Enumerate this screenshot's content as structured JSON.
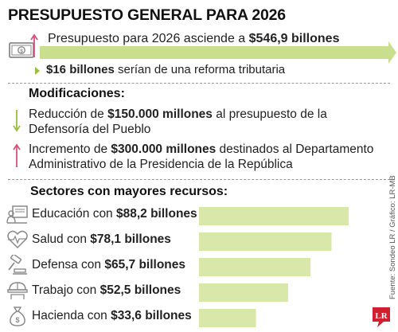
{
  "title": "PRESUPUESTO GENERAL PARA 2026",
  "headline": {
    "prefix": "Presupuesto para 2026 asciende a ",
    "amount": "$546,9 billones"
  },
  "subline": {
    "amount": "$16 billones",
    "suffix": " serían de una reforma tributaria"
  },
  "modifications": {
    "title": "Modificaciones:",
    "items": [
      {
        "direction": "down",
        "prefix": "Reducción de ",
        "amount": "$150.000 millones",
        "suffix": " al presupuesto de la Defensoría del Pueblo",
        "color": "#9bbf3a"
      },
      {
        "direction": "up",
        "prefix": "Incremento de ",
        "amount": "$300.000 millones",
        "suffix": " destinados al Departamento Administrativo de la Presidencia de la República",
        "color": "#d6537a"
      }
    ]
  },
  "chart_data": {
    "type": "bar",
    "orientation": "horizontal",
    "title": "Sectores con mayores recursos:",
    "categories": [
      "Educación",
      "Salud",
      "Defensa",
      "Trabajo",
      "Hacienda"
    ],
    "labels": [
      {
        "prefix": "Educación con ",
        "amount": "$88,2 billones"
      },
      {
        "prefix": "Salud con ",
        "amount": "$78,1 billones"
      },
      {
        "prefix": "Defensa con ",
        "amount": "$65,7 billones"
      },
      {
        "prefix": "Trabajo con ",
        "amount": "$52,5 billones"
      },
      {
        "prefix": "Hacienda con ",
        "amount": "$33,6 billones"
      }
    ],
    "values": [
      88.2,
      78.1,
      65.7,
      52.5,
      33.6
    ],
    "unit": "billones",
    "bar_color": "#d8e8a8",
    "icons": [
      "education-icon",
      "health-icon",
      "defense-icon",
      "work-icon",
      "finance-icon"
    ]
  },
  "source": "Fuente: Sondeo LR / Gráfico: LR-MB",
  "logo": "LR",
  "colors": {
    "accent_green": "#c9df8e",
    "bar_green": "#d8e8a8",
    "icon_gray": "#8a8a8a",
    "up_arrow": "#d6537a",
    "down_arrow": "#9bbf3a",
    "logo_red": "#d01f2e"
  }
}
